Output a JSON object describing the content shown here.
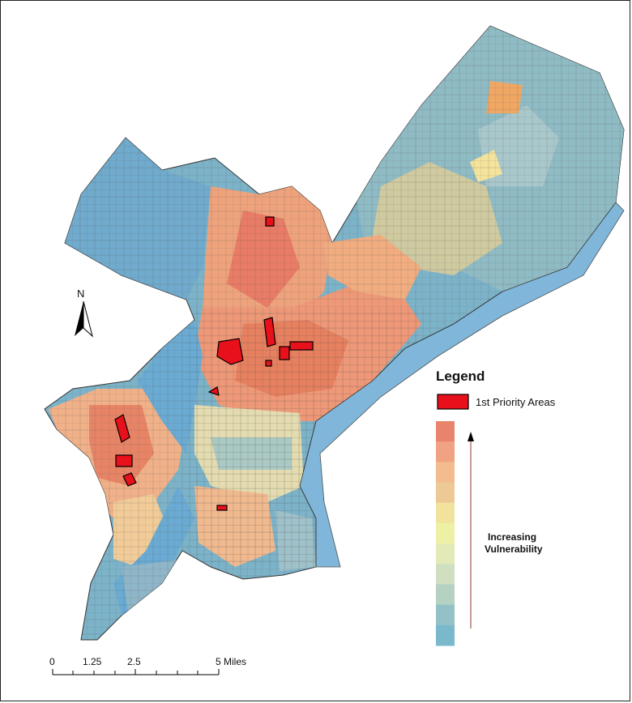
{
  "legend": {
    "title": "Legend",
    "item_label": "1st Priority Areas",
    "item_color": "#e8101a",
    "gradient_label_line1": "Increasing",
    "gradient_label_line2": "Vulnerability",
    "gradient_colors": [
      "#e8846c",
      "#f0a283",
      "#f3bb8e",
      "#ecc995",
      "#f1e39e",
      "#eef0a6",
      "#e3eab7",
      "#cfdfc0",
      "#b4d1c2",
      "#94c1c8",
      "#7ab8cc"
    ]
  },
  "north_arrow": {
    "letter": "N"
  },
  "scale_bar": {
    "labels": [
      "0",
      "1.25",
      "2.5",
      "5 Miles"
    ]
  },
  "colors": {
    "water": "#6aaad3",
    "low_vulnerability": "#7cb3c9",
    "high_vulnerability": "#e77b64",
    "priority": "#e8101a"
  }
}
